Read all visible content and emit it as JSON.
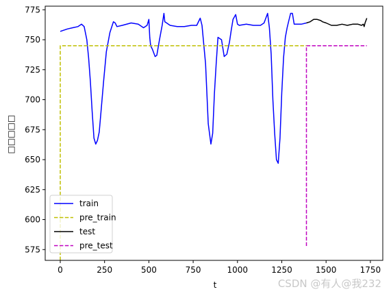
{
  "chart_data": {
    "type": "line",
    "title": "",
    "xlabel": "t",
    "ylabel": "□□□□□",
    "xlim": [
      -85,
      1820
    ],
    "ylim": [
      566,
      778
    ],
    "xticks": [
      0,
      250,
      500,
      750,
      1000,
      1250,
      1500,
      1750
    ],
    "yticks": [
      575,
      600,
      625,
      650,
      675,
      700,
      725,
      750,
      775
    ],
    "grid": false,
    "legend_position": "lower-left",
    "series": [
      {
        "name": "train",
        "color": "#0000ff",
        "style": "solid",
        "x": [
          0,
          40,
          70,
          100,
          120,
          135,
          150,
          160,
          170,
          180,
          190,
          200,
          210,
          220,
          230,
          245,
          260,
          280,
          300,
          310,
          320,
          350,
          400,
          440,
          470,
          490,
          500,
          505,
          510,
          520,
          535,
          545,
          560,
          575,
          585,
          590,
          600,
          620,
          660,
          700,
          740,
          770,
          790,
          800,
          820,
          835,
          850,
          860,
          870,
          880,
          890,
          900,
          910,
          925,
          940,
          955,
          965,
          975,
          990,
          1000,
          1010,
          1050,
          1090,
          1130,
          1150,
          1160,
          1170,
          1180,
          1190,
          1200,
          1210,
          1220,
          1230,
          1240,
          1250,
          1260,
          1270,
          1280,
          1290,
          1300,
          1310,
          1320,
          1360,
          1389
        ],
        "y": [
          757,
          759,
          760,
          761,
          763,
          761,
          750,
          735,
          715,
          690,
          668,
          663,
          666,
          673,
          690,
          716,
          740,
          756,
          765,
          764,
          761,
          762,
          764,
          763,
          760,
          762,
          767,
          752,
          745,
          742,
          736,
          737,
          750,
          762,
          772,
          765,
          764,
          762,
          761,
          761,
          762,
          762,
          768,
          762,
          730,
          680,
          663,
          672,
          705,
          730,
          752,
          751,
          750,
          736,
          738,
          748,
          758,
          767,
          771,
          763,
          762,
          763,
          762,
          762,
          764,
          768,
          772,
          760,
          738,
          700,
          672,
          650,
          647,
          668,
          706,
          735,
          752,
          760,
          766,
          772,
          772,
          763,
          763,
          764
        ]
      },
      {
        "name": "pre_train",
        "color": "#bfbf00",
        "style": "dashed",
        "x": [
          0,
          0,
          2,
          1389
        ],
        "y": [
          566,
          745,
          745,
          745
        ]
      },
      {
        "name": "test",
        "color": "#000000",
        "style": "solid",
        "x": [
          1389,
          1410,
          1430,
          1450,
          1470,
          1480,
          1500,
          1530,
          1560,
          1590,
          1620,
          1650,
          1680,
          1700,
          1710,
          1715,
          1720,
          1730
        ],
        "y": [
          764,
          765,
          767,
          767,
          766,
          765,
          764,
          762,
          762,
          763,
          762,
          763,
          763,
          762,
          763,
          761,
          764,
          768
        ]
      },
      {
        "name": "pre_test",
        "color": "#bf00bf",
        "style": "dashed",
        "x": [
          1389,
          1389,
          1391,
          1730
        ],
        "y": [
          578,
          745,
          745,
          745
        ]
      }
    ]
  },
  "watermark": "CSDN @有人@我232"
}
